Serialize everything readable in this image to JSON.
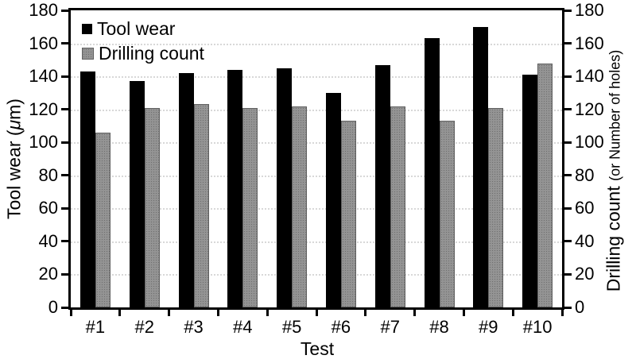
{
  "chart_data": {
    "type": "bar",
    "title": "",
    "categories": [
      "#1",
      "#2",
      "#3",
      "#4",
      "#5",
      "#6",
      "#7",
      "#8",
      "#9",
      "#10"
    ],
    "series": [
      {
        "name": "Tool wear",
        "color": "#000000",
        "values": [
          143,
          137,
          142,
          144,
          145,
          130,
          147,
          163,
          170,
          141
        ]
      },
      {
        "name": "Drilling count",
        "color": "#949494",
        "values": [
          106,
          121,
          123,
          121,
          122,
          113,
          122,
          113,
          121,
          148
        ]
      }
    ],
    "xlabel": "Test",
    "ylabel_left": "Tool wear (μm)",
    "ylabel_right": "Drilling count (or Number of holes)",
    "ylim": [
      0,
      180
    ],
    "ytick_step": 20,
    "grid": "horizontal-dotted",
    "legend_position": "top-left-inside"
  },
  "axes": {
    "left_label_prefix": "Tool wear (",
    "left_label_mu": "μ",
    "left_label_suffix": "m)",
    "right_label_main": "Drilling count ",
    "right_label_paren": "(or Number of holes)",
    "x_title": "Test",
    "y_tick_labels": [
      "0",
      "20",
      "40",
      "60",
      "80",
      "100",
      "120",
      "140",
      "160",
      "180"
    ]
  },
  "legend": {
    "items": [
      {
        "label": "Tool wear",
        "color": "#000000"
      },
      {
        "label": "Drilling count",
        "color": "#949494"
      }
    ]
  },
  "colors": {
    "axis": "#000000",
    "grid": "#d8d8d8",
    "black_bar": "#000000",
    "gray_bar": "#949494",
    "gray_bar_dot": "#707070",
    "gray_bar_border": "#5f5f5f",
    "background": "#ffffff"
  }
}
